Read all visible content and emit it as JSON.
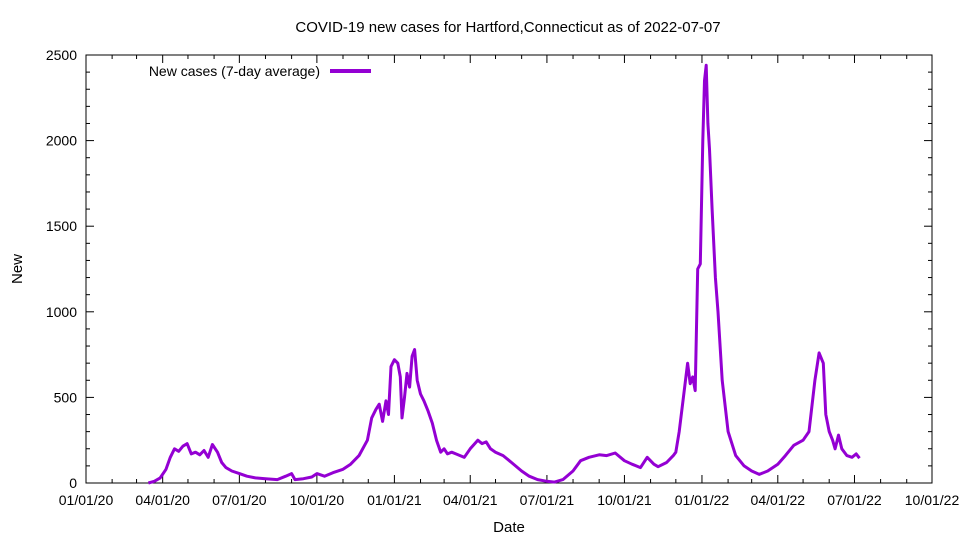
{
  "chart_data": {
    "type": "line",
    "title": "COVID-19 new cases for Hartford,Connecticut as of 2022-07-07",
    "xlabel": "Date",
    "ylabel": "New",
    "legend_position": "top-left",
    "grid": false,
    "x_ticks": [
      "01/01/20",
      "04/01/20",
      "07/01/20",
      "10/01/20",
      "01/01/21",
      "04/01/21",
      "07/01/21",
      "10/01/21",
      "01/01/22",
      "04/01/22",
      "07/01/22",
      "10/01/22"
    ],
    "x_range": [
      "2020-01-01",
      "2022-10-01"
    ],
    "y_ticks": [
      0,
      500,
      1000,
      1500,
      2000,
      2500
    ],
    "ylim": [
      0,
      2500
    ],
    "series": [
      {
        "name": "New cases (7-day average)",
        "color": "#9400d3",
        "points": [
          [
            "2020-03-15",
            0
          ],
          [
            "2020-03-22",
            10
          ],
          [
            "2020-03-29",
            30
          ],
          [
            "2020-04-05",
            80
          ],
          [
            "2020-04-10",
            150
          ],
          [
            "2020-04-15",
            200
          ],
          [
            "2020-04-20",
            185
          ],
          [
            "2020-04-25",
            215
          ],
          [
            "2020-04-30",
            230
          ],
          [
            "2020-05-05",
            170
          ],
          [
            "2020-05-10",
            180
          ],
          [
            "2020-05-15",
            165
          ],
          [
            "2020-05-20",
            190
          ],
          [
            "2020-05-25",
            150
          ],
          [
            "2020-05-30",
            225
          ],
          [
            "2020-06-05",
            180
          ],
          [
            "2020-06-10",
            120
          ],
          [
            "2020-06-15",
            90
          ],
          [
            "2020-06-22",
            70
          ],
          [
            "2020-07-01",
            55
          ],
          [
            "2020-07-10",
            40
          ],
          [
            "2020-07-20",
            30
          ],
          [
            "2020-08-01",
            25
          ],
          [
            "2020-08-15",
            20
          ],
          [
            "2020-08-25",
            40
          ],
          [
            "2020-09-01",
            55
          ],
          [
            "2020-09-05",
            20
          ],
          [
            "2020-09-15",
            25
          ],
          [
            "2020-09-25",
            35
          ],
          [
            "2020-10-01",
            55
          ],
          [
            "2020-10-10",
            40
          ],
          [
            "2020-10-20",
            60
          ],
          [
            "2020-11-01",
            80
          ],
          [
            "2020-11-10",
            110
          ],
          [
            "2020-11-20",
            160
          ],
          [
            "2020-11-30",
            250
          ],
          [
            "2020-12-05",
            380
          ],
          [
            "2020-12-10",
            430
          ],
          [
            "2020-12-14",
            460
          ],
          [
            "2020-12-18",
            360
          ],
          [
            "2020-12-22",
            480
          ],
          [
            "2020-12-25",
            400
          ],
          [
            "2020-12-28",
            680
          ],
          [
            "2021-01-01",
            720
          ],
          [
            "2021-01-05",
            700
          ],
          [
            "2021-01-08",
            620
          ],
          [
            "2021-01-10",
            380
          ],
          [
            "2021-01-13",
            500
          ],
          [
            "2021-01-16",
            640
          ],
          [
            "2021-01-19",
            560
          ],
          [
            "2021-01-22",
            740
          ],
          [
            "2021-01-25",
            780
          ],
          [
            "2021-01-28",
            600
          ],
          [
            "2021-02-01",
            520
          ],
          [
            "2021-02-05",
            480
          ],
          [
            "2021-02-10",
            420
          ],
          [
            "2021-02-15",
            350
          ],
          [
            "2021-02-20",
            250
          ],
          [
            "2021-02-25",
            180
          ],
          [
            "2021-03-01",
            200
          ],
          [
            "2021-03-05",
            170
          ],
          [
            "2021-03-10",
            180
          ],
          [
            "2021-03-15",
            170
          ],
          [
            "2021-03-20",
            160
          ],
          [
            "2021-03-25",
            150
          ],
          [
            "2021-04-01",
            200
          ],
          [
            "2021-04-10",
            250
          ],
          [
            "2021-04-15",
            230
          ],
          [
            "2021-04-20",
            240
          ],
          [
            "2021-04-25",
            200
          ],
          [
            "2021-05-01",
            180
          ],
          [
            "2021-05-10",
            160
          ],
          [
            "2021-05-20",
            120
          ],
          [
            "2021-06-01",
            70
          ],
          [
            "2021-06-10",
            40
          ],
          [
            "2021-06-20",
            20
          ],
          [
            "2021-07-01",
            10
          ],
          [
            "2021-07-10",
            5
          ],
          [
            "2021-07-20",
            20
          ],
          [
            "2021-08-01",
            70
          ],
          [
            "2021-08-10",
            130
          ],
          [
            "2021-08-20",
            150
          ],
          [
            "2021-09-01",
            165
          ],
          [
            "2021-09-10",
            160
          ],
          [
            "2021-09-20",
            175
          ],
          [
            "2021-10-01",
            130
          ],
          [
            "2021-10-10",
            110
          ],
          [
            "2021-10-20",
            90
          ],
          [
            "2021-10-28",
            150
          ],
          [
            "2021-11-05",
            110
          ],
          [
            "2021-11-10",
            95
          ],
          [
            "2021-11-20",
            120
          ],
          [
            "2021-11-28",
            160
          ],
          [
            "2021-12-01",
            180
          ],
          [
            "2021-12-05",
            300
          ],
          [
            "2021-12-10",
            500
          ],
          [
            "2021-12-15",
            700
          ],
          [
            "2021-12-18",
            580
          ],
          [
            "2021-12-21",
            620
          ],
          [
            "2021-12-24",
            540
          ],
          [
            "2021-12-27",
            1250
          ],
          [
            "2021-12-30",
            1280
          ],
          [
            "2022-01-02",
            2000
          ],
          [
            "2022-01-04",
            2350
          ],
          [
            "2022-01-06",
            2440
          ],
          [
            "2022-01-08",
            2100
          ],
          [
            "2022-01-10",
            1950
          ],
          [
            "2022-01-13",
            1600
          ],
          [
            "2022-01-17",
            1200
          ],
          [
            "2022-01-20",
            1000
          ],
          [
            "2022-01-25",
            600
          ],
          [
            "2022-02-01",
            300
          ],
          [
            "2022-02-10",
            160
          ],
          [
            "2022-02-20",
            100
          ],
          [
            "2022-03-01",
            70
          ],
          [
            "2022-03-10",
            50
          ],
          [
            "2022-03-20",
            70
          ],
          [
            "2022-04-01",
            110
          ],
          [
            "2022-04-10",
            160
          ],
          [
            "2022-04-20",
            220
          ],
          [
            "2022-05-01",
            250
          ],
          [
            "2022-05-08",
            300
          ],
          [
            "2022-05-15",
            600
          ],
          [
            "2022-05-20",
            760
          ],
          [
            "2022-05-25",
            700
          ],
          [
            "2022-05-28",
            400
          ],
          [
            "2022-06-01",
            300
          ],
          [
            "2022-06-05",
            250
          ],
          [
            "2022-06-08",
            200
          ],
          [
            "2022-06-12",
            280
          ],
          [
            "2022-06-16",
            200
          ],
          [
            "2022-06-22",
            160
          ],
          [
            "2022-06-28",
            150
          ],
          [
            "2022-07-03",
            170
          ],
          [
            "2022-07-07",
            145
          ]
        ]
      }
    ]
  }
}
